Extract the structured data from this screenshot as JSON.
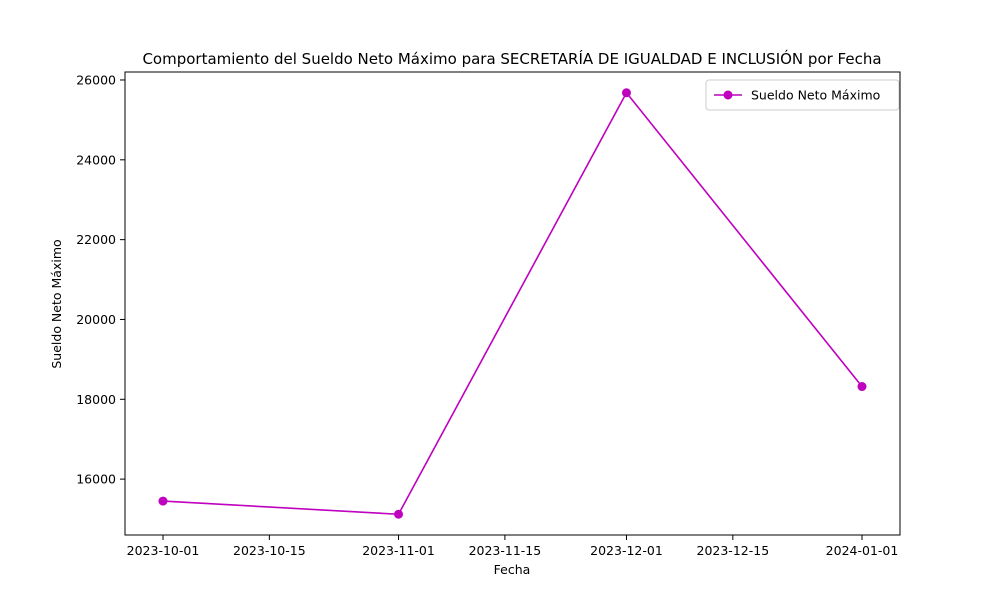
{
  "chart_data": {
    "type": "line",
    "title": "Comportamiento del Sueldo Neto Máximo para SECRETARÍA DE IGUALDAD E INCLUSIÓN por Fecha",
    "xlabel": "Fecha",
    "ylabel": "Sueldo Neto Máximo",
    "x_axis_type": "date",
    "xlim": [
      "2023-09-26",
      "2024-01-06"
    ],
    "ylim": [
      14600,
      26200
    ],
    "x_ticks": [
      "2023-10-01",
      "2023-10-15",
      "2023-11-01",
      "2023-11-15",
      "2023-12-01",
      "2023-12-15",
      "2024-01-01"
    ],
    "y_ticks": [
      16000,
      18000,
      20000,
      22000,
      24000,
      26000
    ],
    "grid": false,
    "legend": "top-right",
    "series": [
      {
        "name": "Sueldo Neto Máximo",
        "color": "#bf00bf",
        "marker": "circle",
        "x": [
          "2023-10-01",
          "2023-11-01",
          "2023-12-01",
          "2024-01-01"
        ],
        "y": [
          15450,
          15120,
          25680,
          18320
        ]
      }
    ]
  }
}
